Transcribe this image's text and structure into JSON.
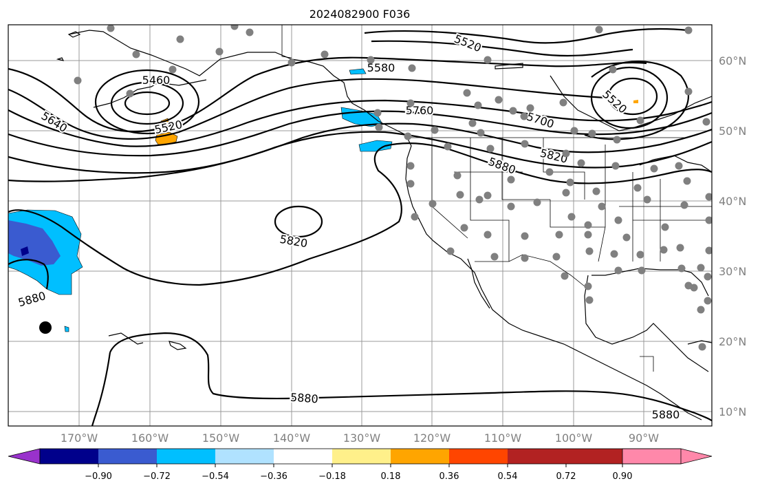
{
  "title": "2024082900 F036",
  "lat_labels": [
    "60°N",
    "50°N",
    "40°N",
    "30°N",
    "20°N",
    "10°N"
  ],
  "lon_labels": [
    "170°W",
    "160°W",
    "150°W",
    "140°W",
    "130°W",
    "120°W",
    "110°W",
    "100°W",
    "90°W"
  ],
  "colorbar": {
    "colors": [
      "#9932cc",
      "#00008b",
      "#3a5bd0",
      "#00bfff",
      "#b0e2ff",
      "#ffffff",
      "#fff08a",
      "#ffa500",
      "#ff4500",
      "#b22222",
      "#ff88aa"
    ],
    "tick_labels": [
      "−0.90",
      "−0.72",
      "−0.54",
      "−0.36",
      "−0.18",
      "0.18",
      "0.36",
      "0.54",
      "0.72",
      "0.90"
    ]
  },
  "contour_labels": [
    "5520",
    "5580",
    "5460",
    "5640",
    "5520",
    "5760",
    "5700",
    "5520",
    "5880",
    "5820",
    "5820",
    "5880",
    "5880",
    "5880"
  ],
  "marker_color": "#808080"
}
